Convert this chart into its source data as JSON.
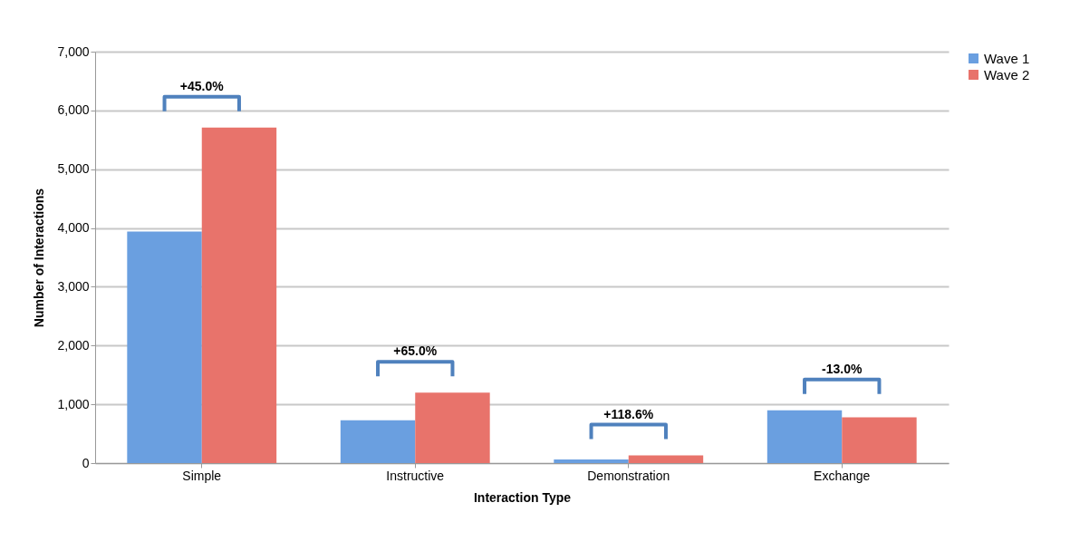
{
  "chart_data": {
    "type": "bar",
    "xlabel": "Interaction Type",
    "ylabel": "Number of Interactions",
    "categories": [
      "Simple",
      "Instructive",
      "Demonstration",
      "Exchange"
    ],
    "series": [
      {
        "name": "Wave 1",
        "color": "#6a9fe0",
        "values": [
          3940,
          730,
          60,
          900
        ]
      },
      {
        "name": "Wave 2",
        "color": "#e8736b",
        "values": [
          5710,
          1200,
          130,
          780
        ]
      }
    ],
    "ylim": [
      0,
      7000
    ],
    "yticks": [
      0,
      {
        "value": 1000,
        "label": "1,000"
      },
      {
        "value": 2000,
        "label": "2,000"
      },
      {
        "value": 3000,
        "label": "3,000"
      },
      {
        "value": 4000,
        "label": "4,000"
      },
      {
        "value": 5000,
        "label": "5,000"
      },
      {
        "value": 6000,
        "label": "6,000"
      },
      {
        "value": 7000,
        "label": "7,000"
      }
    ],
    "grid": "y",
    "legend": "right",
    "annotations": [
      "+45.0%",
      "+65.0%",
      "+118.6%",
      "-13.0%"
    ]
  }
}
